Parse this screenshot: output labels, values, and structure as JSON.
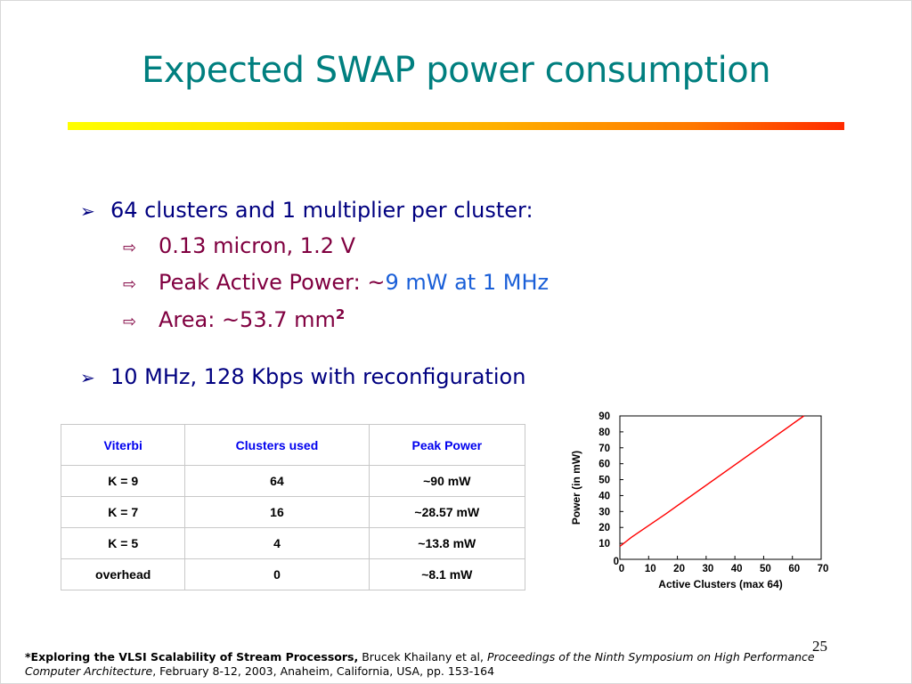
{
  "slide": {
    "title": "Expected SWAP power consumption",
    "page_number": "25"
  },
  "bullets": {
    "b1": {
      "text": "64 clusters and 1 multiplier per cluster:"
    },
    "b1a": {
      "text": "0.13 micron, 1.2 V"
    },
    "b1b": {
      "prefix": "Peak Active Power: ~",
      "highlight": "9 mW at 1 MHz"
    },
    "b1c": {
      "prefix": "Area: ~53.7 mm",
      "superscript": "2"
    },
    "b2": {
      "text": "10 MHz, 128 Kbps with reconfiguration"
    }
  },
  "table": {
    "headers": [
      "Viterbi",
      "Clusters used",
      "Peak Power"
    ],
    "rows": [
      [
        "K = 9",
        "64",
        "~90 mW"
      ],
      [
        "K = 7",
        "16",
        "~28.57 mW"
      ],
      [
        "K = 5",
        "4",
        "~13.8 mW"
      ],
      [
        "overhead",
        "0",
        "~8.1 mW"
      ]
    ]
  },
  "chart_data": {
    "type": "line",
    "xlabel": "Active Clusters (max 64)",
    "ylabel": "Power (in mW)",
    "xlim": [
      0,
      70
    ],
    "ylim": [
      0,
      90
    ],
    "x_ticks": [
      "0",
      "10",
      "20",
      "30",
      "40",
      "50",
      "60",
      "70"
    ],
    "y_ticks": [
      "0",
      "10",
      "20",
      "30",
      "40",
      "50",
      "60",
      "70",
      "80",
      "90"
    ],
    "grid": false,
    "series": [
      {
        "color": "#ff0000",
        "x": [
          0,
          4,
          16,
          64
        ],
        "y": [
          8.1,
          13.8,
          28.57,
          90
        ]
      }
    ]
  },
  "footnote": {
    "bold": "*Exploring the VLSI Scalability of Stream Processors,",
    "authors": " Brucek Khailany et al, ",
    "venue": "Proceedings of the Ninth Symposium on High Performance Computer Architecture",
    "details": ", February 8-12, 2003, Anaheim, California, USA, pp. 153-164"
  },
  "colors": {
    "title": "#007f7f",
    "level1": "#000080",
    "level2": "#800040",
    "highlight": "#1a5fd8",
    "table_header": "#0000ee",
    "line": "#ff0000"
  }
}
